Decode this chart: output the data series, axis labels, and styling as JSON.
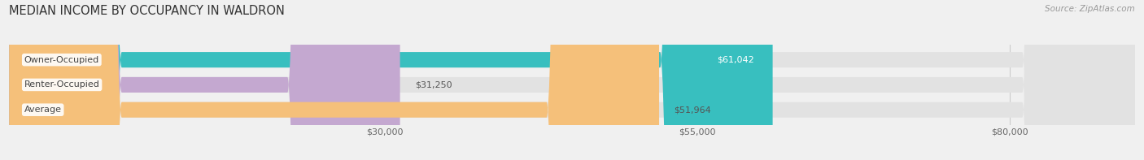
{
  "title": "MEDIAN INCOME BY OCCUPANCY IN WALDRON",
  "source": "Source: ZipAtlas.com",
  "categories": [
    "Owner-Occupied",
    "Renter-Occupied",
    "Average"
  ],
  "values": [
    61042,
    31250,
    51964
  ],
  "bar_colors": [
    "#38bfbf",
    "#c4a8d0",
    "#f5c07a"
  ],
  "bar_bg_color": "#e2e2e2",
  "labels": [
    "$61,042",
    "$31,250",
    "$51,964"
  ],
  "label_inside": [
    true,
    false,
    false
  ],
  "label_colors_inside": [
    "#ffffff",
    "#555555",
    "#555555"
  ],
  "x_ticks": [
    30000,
    55000,
    80000
  ],
  "x_tick_labels": [
    "$30,000",
    "$55,000",
    "$80,000"
  ],
  "x_min": 0,
  "x_max": 90000,
  "title_fontsize": 10.5,
  "label_fontsize": 8,
  "tick_fontsize": 8,
  "source_fontsize": 7.5,
  "bar_height": 0.62,
  "bar_spacing": 1.0,
  "rounding_size": 9000
}
